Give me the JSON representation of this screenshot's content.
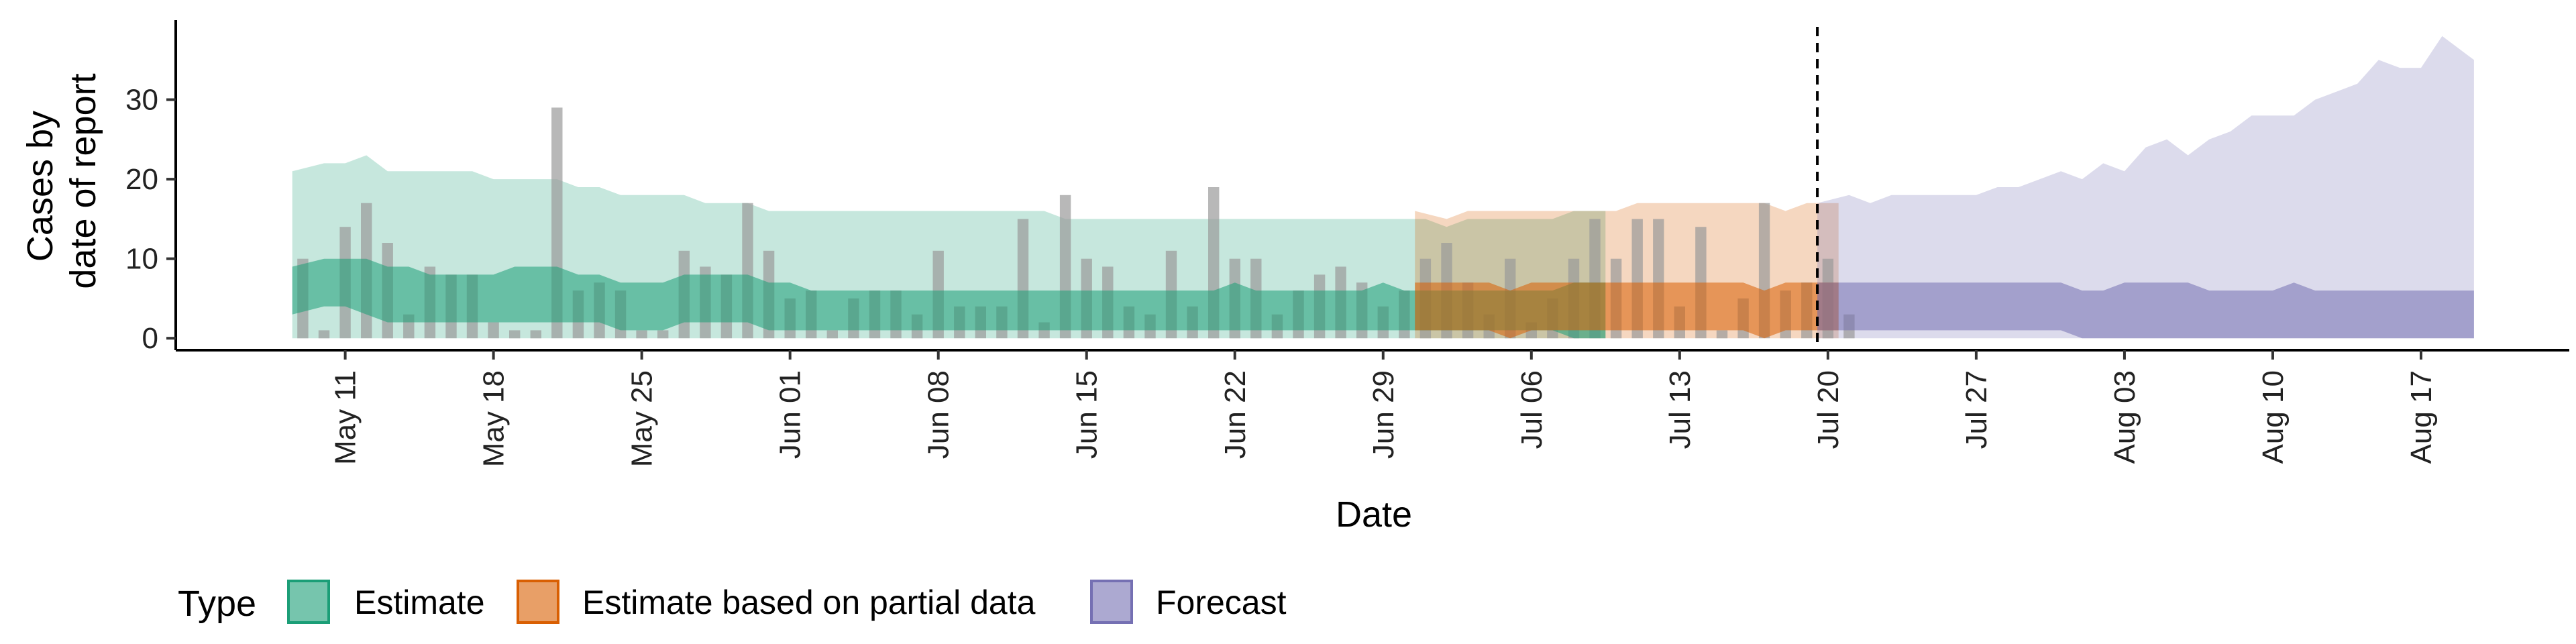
{
  "chart_data": {
    "type": "area",
    "xlabel": "Date",
    "ylabel_lines": [
      "Cases by",
      "date of report"
    ],
    "yticks": [
      0,
      10,
      20,
      30
    ],
    "ylim": [
      -1.5,
      40
    ],
    "xlim": [
      "2020-05-03",
      "2020-08-24"
    ],
    "xtick_labels": [
      "May 11",
      "May 18",
      "May 25",
      "Jun 01",
      "Jun 08",
      "Jun 15",
      "Jun 22",
      "Jun 29",
      "Jul 06",
      "Jul 13",
      "Jul 20",
      "Jul 27",
      "Aug 03",
      "Aug 10",
      "Aug 17"
    ],
    "xtick_dates": [
      "2020-05-11",
      "2020-05-18",
      "2020-05-25",
      "2020-06-01",
      "2020-06-08",
      "2020-06-15",
      "2020-06-22",
      "2020-06-29",
      "2020-07-06",
      "2020-07-13",
      "2020-07-20",
      "2020-07-27",
      "2020-08-03",
      "2020-08-10",
      "2020-08-17"
    ],
    "cutoff_date": "2020-07-19",
    "legend_title": "Type",
    "legend_position": "bottom",
    "reported_cases": {
      "start_date": "2020-05-09",
      "color": "#9a9a9a",
      "values": [
        10,
        1,
        14,
        17,
        12,
        3,
        9,
        8,
        8,
        2,
        1,
        1,
        29,
        6,
        7,
        6,
        1,
        1,
        11,
        9,
        8,
        17,
        11,
        5,
        6,
        1,
        5,
        6,
        6,
        3,
        11,
        4,
        4,
        4,
        15,
        2,
        18,
        10,
        9,
        4,
        3,
        11,
        4,
        19,
        10,
        10,
        3,
        6,
        8,
        9,
        7,
        4,
        6,
        10,
        12,
        7,
        3,
        10,
        2,
        5,
        10,
        15,
        10,
        15,
        15,
        4,
        14,
        1,
        5,
        17,
        6,
        7,
        10,
        3
      ]
    },
    "series": [
      {
        "name": "Estimate",
        "color": "#1b9e77",
        "start_date": "2020-05-09",
        "outer_upper": [
          21,
          22,
          22,
          23,
          21,
          21,
          21,
          21,
          21,
          20,
          20,
          20,
          20,
          19,
          19,
          18,
          18,
          18,
          18,
          17,
          17,
          17,
          16,
          16,
          16,
          16,
          16,
          16,
          16,
          16,
          16,
          16,
          16,
          16,
          16,
          16,
          15,
          15,
          15,
          15,
          15,
          15,
          15,
          15,
          15,
          15,
          15,
          15,
          15,
          15,
          15,
          15,
          15,
          15,
          14,
          15,
          15,
          15,
          15,
          15,
          16,
          16
        ],
        "outer_lower": [
          0,
          0,
          0,
          0,
          0,
          0,
          0,
          0,
          0,
          0,
          0,
          0,
          0,
          0,
          0,
          0,
          0,
          0,
          0,
          0,
          0,
          0,
          0,
          0,
          0,
          0,
          0,
          0,
          0,
          0,
          0,
          0,
          0,
          0,
          0,
          0,
          0,
          0,
          0,
          0,
          0,
          0,
          0,
          0,
          0,
          0,
          0,
          0,
          0,
          0,
          0,
          0,
          0,
          0,
          0,
          0,
          0,
          0,
          0,
          0,
          0,
          0
        ],
        "inner_upper": [
          9,
          10,
          10,
          10,
          9,
          9,
          8,
          8,
          8,
          8,
          9,
          9,
          9,
          8,
          8,
          7,
          7,
          7,
          8,
          8,
          8,
          8,
          7,
          7,
          6,
          6,
          6,
          6,
          6,
          6,
          6,
          6,
          6,
          6,
          6,
          6,
          6,
          6,
          6,
          6,
          6,
          6,
          6,
          6,
          7,
          6,
          6,
          6,
          6,
          6,
          6,
          7,
          6,
          6,
          6,
          6,
          6,
          6,
          6,
          6,
          7,
          7
        ],
        "inner_lower": [
          3,
          4,
          4,
          3,
          2,
          2,
          2,
          2,
          2,
          2,
          2,
          2,
          2,
          2,
          2,
          1,
          1,
          1,
          2,
          2,
          2,
          2,
          1,
          1,
          1,
          1,
          1,
          1,
          1,
          1,
          1,
          1,
          1,
          1,
          1,
          1,
          1,
          1,
          1,
          1,
          1,
          1,
          1,
          1,
          1,
          1,
          1,
          1,
          1,
          1,
          1,
          1,
          1,
          1,
          1,
          1,
          1,
          1,
          1,
          1,
          0,
          0
        ]
      },
      {
        "name": "Estimate based on partial data",
        "color": "#d95f02",
        "start_date": "2020-07-01",
        "outer_upper": [
          16,
          15,
          16,
          16,
          16,
          16,
          16,
          16,
          16,
          16,
          17,
          17,
          17,
          17,
          17,
          17,
          17,
          16,
          17,
          17
        ],
        "outer_lower": [
          0,
          0,
          0,
          0,
          0,
          0,
          0,
          0,
          0,
          0,
          0,
          0,
          0,
          0,
          0,
          0,
          0,
          0,
          0,
          0
        ],
        "inner_upper": [
          7,
          7,
          7,
          7,
          6,
          7,
          7,
          7,
          7,
          7,
          7,
          7,
          7,
          7,
          7,
          7,
          6,
          7,
          7,
          7
        ],
        "inner_lower": [
          1,
          1,
          1,
          1,
          0,
          1,
          1,
          1,
          1,
          1,
          1,
          1,
          1,
          1,
          1,
          1,
          0,
          1,
          1,
          1
        ]
      },
      {
        "name": "Forecast",
        "color": "#7570b3",
        "start_date": "2020-07-20",
        "outer_upper": [
          17,
          18,
          17,
          18,
          18,
          18,
          18,
          18,
          19,
          19,
          20,
          21,
          20,
          22,
          21,
          24,
          25,
          23,
          25,
          26,
          28,
          28,
          28,
          30,
          31,
          32,
          35,
          34,
          34,
          38,
          35
        ],
        "outer_lower": [
          0,
          0,
          0,
          0,
          0,
          0,
          0,
          0,
          0,
          0,
          0,
          0,
          0,
          0,
          0,
          0,
          0,
          0,
          0,
          0,
          0,
          0,
          0,
          0,
          0,
          0,
          0,
          0,
          0,
          0,
          0
        ],
        "inner_upper": [
          7,
          7,
          7,
          7,
          7,
          7,
          7,
          7,
          7,
          7,
          7,
          7,
          6,
          6,
          7,
          7,
          7,
          7,
          6,
          6,
          6,
          6,
          7,
          6,
          6,
          6,
          6,
          6,
          6,
          6,
          6
        ],
        "inner_lower": [
          1,
          1,
          1,
          1,
          1,
          1,
          1,
          1,
          1,
          1,
          1,
          1,
          0,
          0,
          0,
          0,
          0,
          0,
          0,
          0,
          0,
          0,
          0,
          0,
          0,
          0,
          0,
          0,
          0,
          0,
          0
        ]
      }
    ]
  }
}
